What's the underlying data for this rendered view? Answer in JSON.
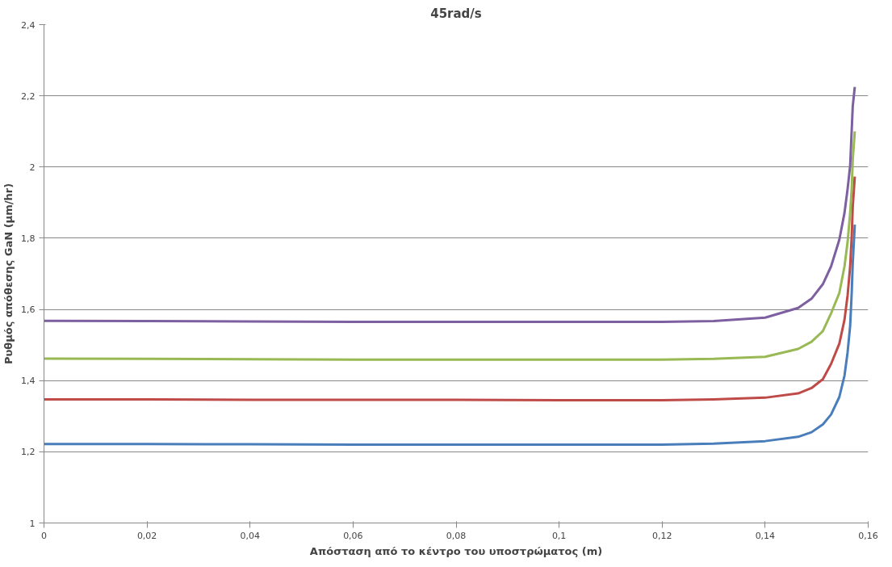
{
  "chart_data": {
    "type": "line",
    "title": "45rad/s",
    "xlabel": "Απόσταση από το κέντρο του υποστρώματος (m)",
    "ylabel": "Ρυθμός απόθεσης GaN (μm/hr)",
    "x": [
      0,
      0.02,
      0.04,
      0.06,
      0.08,
      0.1,
      0.12,
      0.13,
      0.14,
      0.1464,
      0.149,
      0.1512,
      0.1528,
      0.1544,
      0.1554,
      0.156,
      0.1565,
      0.1568,
      0.157,
      0.1574
    ],
    "series": [
      {
        "color": "#4a7ebb",
        "values": [
          1.222,
          1.222,
          1.221,
          1.22,
          1.22,
          1.22,
          1.22,
          1.223,
          1.23,
          1.242,
          1.255,
          1.277,
          1.305,
          1.354,
          1.414,
          1.479,
          1.554,
          1.646,
          1.729,
          1.838
        ]
      },
      {
        "color": "#be4b48",
        "values": [
          1.347,
          1.347,
          1.346,
          1.346,
          1.346,
          1.345,
          1.345,
          1.347,
          1.352,
          1.364,
          1.379,
          1.404,
          1.447,
          1.504,
          1.571,
          1.639,
          1.721,
          1.804,
          1.888,
          1.973
        ]
      },
      {
        "color": "#98b954",
        "values": [
          1.462,
          1.461,
          1.46,
          1.459,
          1.459,
          1.459,
          1.459,
          1.461,
          1.467,
          1.489,
          1.509,
          1.539,
          1.589,
          1.646,
          1.721,
          1.789,
          1.871,
          1.938,
          2.021,
          2.1
        ]
      },
      {
        "color": "#7d60a0",
        "values": [
          1.568,
          1.567,
          1.566,
          1.565,
          1.565,
          1.565,
          1.565,
          1.567,
          1.577,
          1.604,
          1.63,
          1.671,
          1.721,
          1.796,
          1.871,
          1.938,
          2.004,
          2.103,
          2.17,
          2.225
        ]
      }
    ],
    "xlim": [
      0,
      0.16
    ],
    "ylim": [
      1,
      2.4
    ],
    "xticks": [
      0,
      {
        "value": 0.02,
        "label": "0,02"
      },
      {
        "value": 0.04,
        "label": "0,04"
      },
      {
        "value": 0.06,
        "label": "0,06"
      },
      {
        "value": 0.08,
        "label": "0,08"
      },
      {
        "value": 0.1,
        "label": "0,1"
      },
      {
        "value": 0.12,
        "label": "0,12"
      },
      {
        "value": 0.14,
        "label": "0,14"
      },
      {
        "value": 0.16,
        "label": "0,16"
      }
    ],
    "yticks": [
      1,
      {
        "value": 1.2,
        "label": "1,2"
      },
      {
        "value": 1.4,
        "label": "1,4"
      },
      {
        "value": 1.6,
        "label": "1,6"
      },
      {
        "value": 1.8,
        "label": "1,8"
      },
      2,
      {
        "value": 2.2,
        "label": "2,2"
      },
      {
        "value": 2.4,
        "label": "2,4"
      }
    ],
    "grid": "y",
    "marker": "none",
    "line_style": "solid"
  }
}
